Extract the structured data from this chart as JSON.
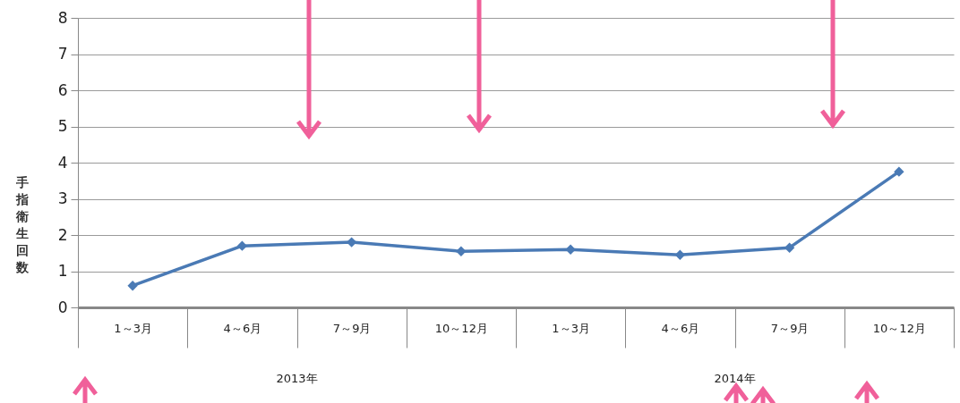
{
  "chart_data": {
    "type": "line",
    "ylabel": "手指衛生回数",
    "categories": [
      "1～3月",
      "4～6月",
      "7～9月",
      "10～12月",
      "1～3月",
      "4～6月",
      "7～9月",
      "10～12月"
    ],
    "series": [
      {
        "color": "#4a7ab5",
        "values": [
          0.6,
          1.7,
          1.8,
          1.55,
          1.6,
          1.45,
          1.65,
          3.75
        ]
      }
    ],
    "ylim": [
      0,
      8
    ],
    "yticks": [
      0,
      1,
      2,
      3,
      4,
      5,
      6,
      7,
      8
    ],
    "grid": "y",
    "marker": "diamond",
    "annotations": [
      "2013年",
      "2014年"
    ]
  }
}
